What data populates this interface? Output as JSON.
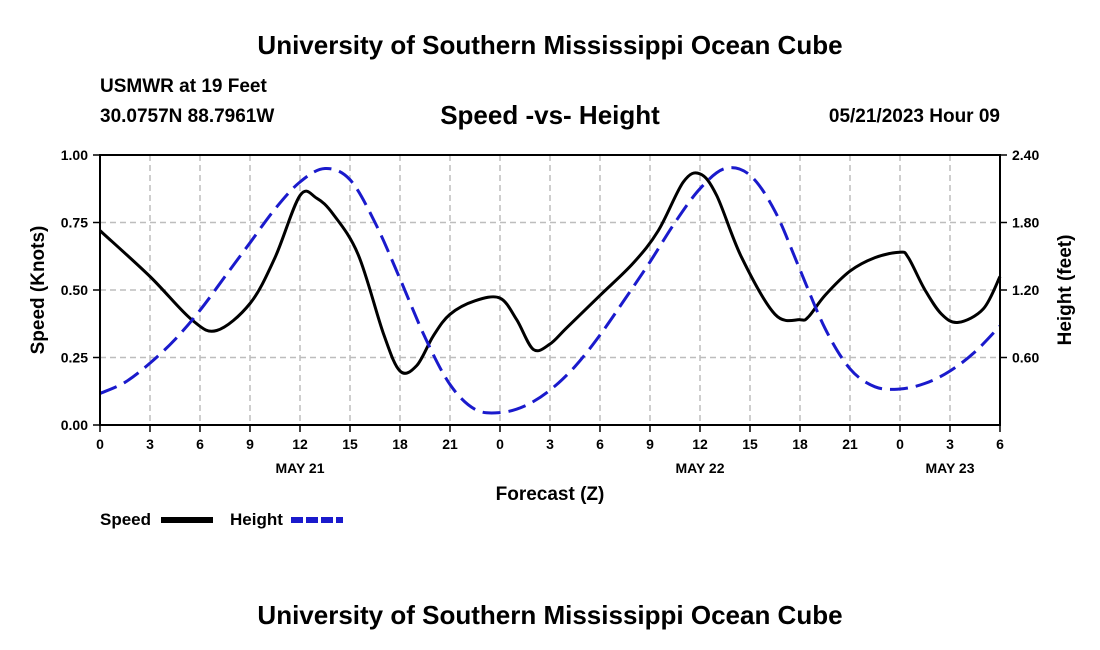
{
  "page": {
    "top_title": "University of Southern Mississippi Ocean Cube",
    "bottom_title": "University of Southern Mississippi Ocean Cube",
    "station": "USMWR at 19 Feet",
    "coords": "30.0757N  88.7961W",
    "timestamp": "05/21/2023 Hour 09"
  },
  "colors": {
    "speed": "#000000",
    "height": "#1a1acc",
    "grid": "#bdbdbd"
  },
  "chart_data": {
    "type": "line",
    "title": "Speed -vs- Height",
    "xlabel": "Forecast (Z)",
    "ylabel": "Speed (Knots)",
    "y2label": "Height (feet)",
    "x_range": [
      0,
      54
    ],
    "x_ticks": [
      0,
      3,
      6,
      9,
      12,
      15,
      18,
      21,
      24,
      27,
      30,
      33,
      36,
      39,
      42,
      45,
      48,
      51,
      54
    ],
    "x_tick_labels": [
      "0",
      "3",
      "6",
      "9",
      "12",
      "15",
      "18",
      "21",
      "0",
      "3",
      "6",
      "9",
      "12",
      "15",
      "18",
      "21",
      "0",
      "3",
      "6"
    ],
    "date_labels": [
      {
        "x": 12,
        "label": "MAY 21"
      },
      {
        "x": 36,
        "label": "MAY 22"
      },
      {
        "x": 51,
        "label": "MAY 23"
      }
    ],
    "ylim": [
      0,
      1.0
    ],
    "y_ticks": [
      0,
      0.25,
      0.5,
      0.75,
      1.0
    ],
    "y_tick_labels": [
      "0.00",
      "0.25",
      "0.50",
      "0.75",
      "1.00"
    ],
    "y2lim": [
      0,
      2.4
    ],
    "y2_ticks": [
      0.6,
      1.2,
      1.8,
      2.4
    ],
    "y2_tick_labels": [
      "0.60",
      "1.20",
      "1.80",
      "2.40"
    ],
    "grid": true,
    "legend": {
      "placement": "bottom-left",
      "entries": [
        "Speed",
        "Height"
      ]
    },
    "series": [
      {
        "name": "Speed",
        "axis": "left",
        "style": "solid",
        "x": [
          0,
          3,
          5.5,
          7,
          9,
          10.5,
          12,
          13,
          14,
          15.5,
          17,
          18,
          19,
          20,
          21,
          22.5,
          24,
          25,
          26,
          27,
          28,
          30,
          32,
          33.5,
          35,
          36,
          37,
          38.5,
          40.5,
          42,
          42.5,
          43.5,
          45,
          46.5,
          48,
          48.5,
          49.5,
          50.5,
          51.5,
          53,
          54
        ],
        "values": [
          0.72,
          0.55,
          0.39,
          0.35,
          0.45,
          0.62,
          0.85,
          0.84,
          0.78,
          0.63,
          0.34,
          0.2,
          0.22,
          0.33,
          0.41,
          0.46,
          0.47,
          0.39,
          0.28,
          0.3,
          0.36,
          0.48,
          0.6,
          0.72,
          0.9,
          0.93,
          0.85,
          0.62,
          0.41,
          0.39,
          0.4,
          0.48,
          0.57,
          0.62,
          0.64,
          0.62,
          0.5,
          0.41,
          0.38,
          0.43,
          0.55
        ]
      },
      {
        "name": "Height",
        "axis": "right",
        "style": "dashed",
        "x": [
          0,
          1.5,
          3,
          4.5,
          6,
          7.5,
          9,
          10.5,
          12,
          13.5,
          15,
          16.5,
          18,
          19.5,
          21,
          22.5,
          24,
          25.5,
          27,
          28.5,
          30,
          31.5,
          33,
          34.5,
          36,
          37.5,
          39,
          40.5,
          42,
          43.5,
          45,
          46.5,
          48,
          49.5,
          51,
          52.5,
          54
        ],
        "values": [
          0.28,
          0.38,
          0.55,
          0.76,
          1.02,
          1.32,
          1.62,
          1.92,
          2.16,
          2.28,
          2.18,
          1.8,
          1.3,
          0.78,
          0.36,
          0.14,
          0.11,
          0.17,
          0.31,
          0.52,
          0.8,
          1.12,
          1.45,
          1.8,
          2.1,
          2.28,
          2.22,
          1.9,
          1.38,
          0.86,
          0.5,
          0.34,
          0.32,
          0.37,
          0.48,
          0.65,
          0.88
        ]
      }
    ]
  }
}
